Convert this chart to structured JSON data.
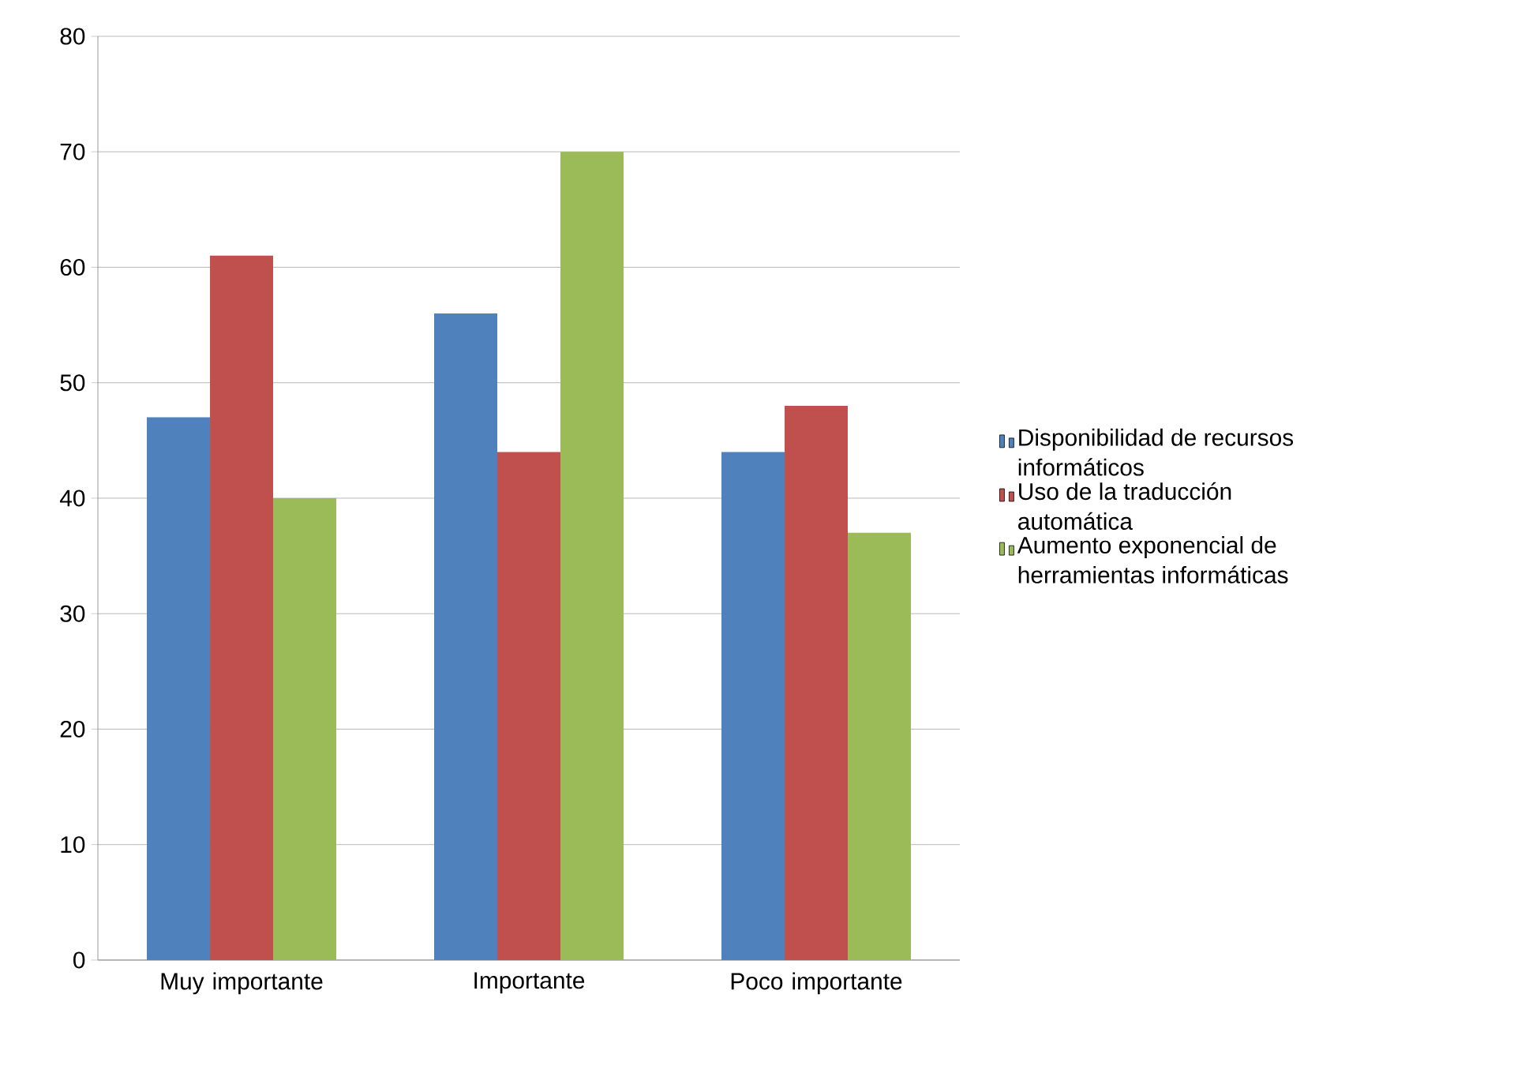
{
  "chart_data": {
    "type": "bar",
    "categories": [
      "Muy importante",
      "Importante",
      "Poco importante"
    ],
    "series": [
      {
        "name": "Disponibilidad de recursos informáticos",
        "color": "#4f81bd",
        "values": [
          47,
          56,
          44
        ]
      },
      {
        "name": "Uso de la traducción automática",
        "color": "#c0504d",
        "values": [
          61,
          44,
          48
        ]
      },
      {
        "name": "Aumento exponencial de herramientas informáticas",
        "color": "#9bbb59",
        "values": [
          40,
          70,
          37
        ]
      }
    ],
    "ylim": [
      0,
      80
    ],
    "yticks": [
      0,
      10,
      20,
      30,
      40,
      50,
      60,
      70,
      80
    ],
    "grid": "y",
    "legend": "right"
  }
}
